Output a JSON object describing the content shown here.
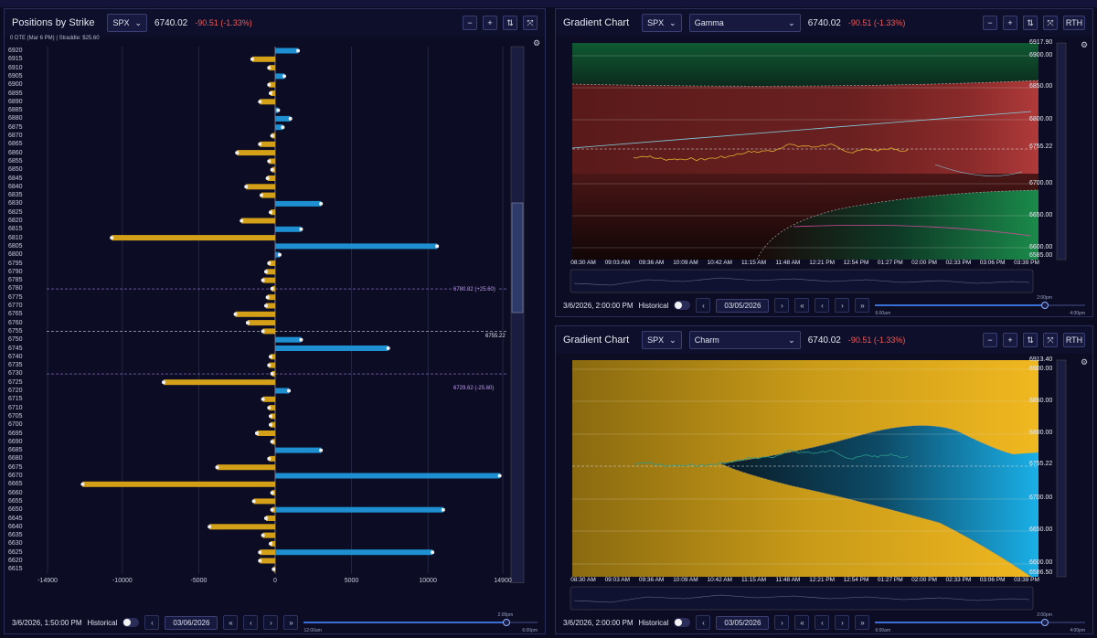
{
  "left_panel": {
    "title": "Positions by Strike",
    "symbol": "SPX",
    "price": "6740.02",
    "change": "-90.51 (-1.33%)",
    "subtitle": "0 DTE (Mar 6 PM)  |  Straddle: $25.60",
    "buttons": [
      "−",
      "+",
      "⇅",
      "⤧"
    ],
    "x_ticks": [
      "-14900",
      "-10000",
      "-5000",
      "0",
      "5000",
      "10000",
      "14900"
    ],
    "annotations": [
      "6780.82 (+25.60)",
      "6755.22",
      "6729.62 (-25.60)"
    ],
    "footer": {
      "timestamp": "3/6/2026, 1:50:00 PM",
      "mode": "Historical",
      "date": "03/06/2026",
      "slider_top": "2:00pm",
      "slider_left": "12:00am",
      "slider_right": "6:00pm"
    }
  },
  "gamma_panel": {
    "title": "Gradient Chart",
    "symbol": "SPX",
    "metric": "Gamma",
    "price": "6740.02",
    "change": "-90.51 (-1.33%)",
    "buttons": [
      "−",
      "+",
      "⇅",
      "⤧"
    ],
    "rth": "RTH",
    "price_labels": [
      "6917.90",
      "6900.00",
      "6850.00",
      "6800.00",
      "6755.22",
      "6700.00",
      "6650.00",
      "6600.00",
      "6585.00"
    ],
    "time_labels": [
      "08:30 AM",
      "09:03 AM",
      "09:36 AM",
      "10:09 AM",
      "10:42 AM",
      "11:15 AM",
      "11:48 AM",
      "12:21 PM",
      "12:54 PM",
      "01:27 PM",
      "02:00 PM",
      "02:33 PM",
      "03:06 PM",
      "03:39 PM"
    ],
    "footer": {
      "timestamp": "3/6/2026, 2:00:00 PM",
      "mode": "Historical",
      "date": "03/05/2026",
      "slider_top": "2:00pm",
      "slider_left": "6:00am",
      "slider_right": "4:00pm"
    }
  },
  "charm_panel": {
    "title": "Gradient Chart",
    "symbol": "SPX",
    "metric": "Charm",
    "price": "6740.02",
    "change": "-90.51 (-1.33%)",
    "buttons": [
      "−",
      "+",
      "⇅",
      "⤧"
    ],
    "rth": "RTH",
    "price_labels": [
      "6913.40",
      "6900.00",
      "6850.00",
      "6800.00",
      "6755.22",
      "6700.00",
      "6650.00",
      "6600.00",
      "6586.50"
    ],
    "time_labels": [
      "08:30 AM",
      "09:03 AM",
      "09:36 AM",
      "10:09 AM",
      "10:42 AM",
      "11:15 AM",
      "11:48 AM",
      "12:21 PM",
      "12:54 PM",
      "01:27 PM",
      "02:00 PM",
      "02:33 PM",
      "03:06 PM",
      "03:39 PM"
    ],
    "footer": {
      "timestamp": "3/6/2026, 2:00:00 PM",
      "mode": "Historical",
      "date": "03/05/2026",
      "slider_top": "2:00pm",
      "slider_left": "6:00am",
      "slider_right": "4:00pm"
    }
  },
  "chart_data": {
    "type": "bar",
    "title": "Positions by Strike",
    "categories": [
      "6920",
      "6915",
      "6910",
      "6905",
      "6900",
      "6895",
      "6890",
      "6885",
      "6880",
      "6875",
      "6870",
      "6865",
      "6860",
      "6855",
      "6850",
      "6845",
      "6840",
      "6835",
      "6830",
      "6825",
      "6820",
      "6815",
      "6810",
      "6805",
      "6800",
      "6795",
      "6790",
      "6785",
      "6780",
      "6775",
      "6770",
      "6765",
      "6760",
      "6755",
      "6750",
      "6745",
      "6740",
      "6735",
      "6730",
      "6725",
      "6720",
      "6715",
      "6710",
      "6705",
      "6700",
      "6695",
      "6690",
      "6685",
      "6680",
      "6675",
      "6670",
      "6665",
      "6660",
      "6655",
      "6650",
      "6645",
      "6640",
      "6635",
      "6630",
      "6625",
      "6620",
      "6615"
    ],
    "xlim": [
      -14900,
      14900
    ],
    "series": [
      {
        "name": "positive",
        "values": [
          1500,
          0,
          0,
          600,
          0,
          0,
          0,
          200,
          1000,
          500,
          0,
          0,
          0,
          0,
          0,
          0,
          0,
          0,
          3000,
          0,
          0,
          1700,
          0,
          10600,
          300,
          0,
          0,
          0,
          0,
          0,
          0,
          0,
          0,
          0,
          1700,
          7400,
          0,
          0,
          0,
          0,
          900,
          0,
          0,
          0,
          0,
          0,
          0,
          3000,
          0,
          0,
          14700,
          0,
          0,
          0,
          11000,
          0,
          0,
          0,
          0,
          10300,
          0,
          0
        ]
      },
      {
        "name": "negative",
        "values": [
          0,
          -1500,
          -400,
          0,
          -400,
          -300,
          -1000,
          0,
          0,
          0,
          -200,
          -1000,
          -2500,
          -400,
          -200,
          -500,
          -1900,
          -900,
          0,
          -300,
          -2200,
          0,
          -10700,
          0,
          0,
          -400,
          -600,
          -800,
          -200,
          -500,
          -600,
          -2600,
          -1800,
          -800,
          0,
          0,
          -300,
          -400,
          -200,
          -7300,
          0,
          -800,
          -400,
          -300,
          -300,
          -1200,
          -200,
          0,
          -400,
          -3800,
          0,
          -12600,
          -200,
          -1400,
          -200,
          -600,
          -4300,
          -800,
          -300,
          -1000,
          -1000,
          -100
        ]
      }
    ]
  }
}
